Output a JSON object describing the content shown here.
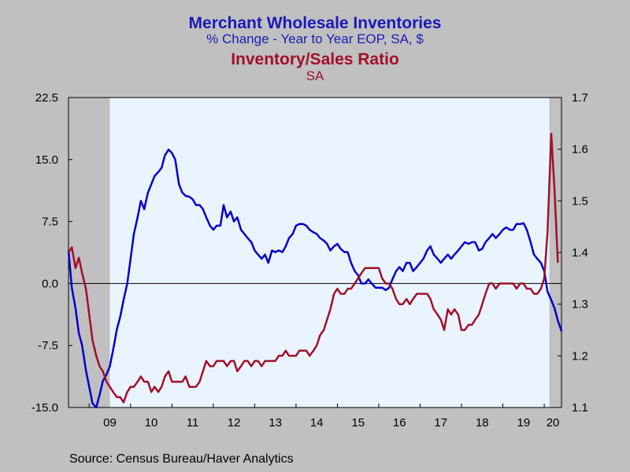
{
  "titles": {
    "line1": "Merchant Wholesale Inventories",
    "line2": "% Change - Year to Year    EOP, SA, $",
    "line3": "Inventory/Sales Ratio",
    "line4": "SA"
  },
  "source": "Source:  Census Bureau/Haver Analytics",
  "colors": {
    "series1": "#0000cc",
    "series2": "#a0102a",
    "plot_bg": "#eaf4ff",
    "recession": "#c0c0c0"
  },
  "chart_data": {
    "type": "line",
    "x_ticks": [
      "09",
      "10",
      "11",
      "12",
      "13",
      "14",
      "15",
      "16",
      "17",
      "18",
      "19",
      "20"
    ],
    "x_range": [
      2008.5,
      2020.417
    ],
    "recessions": [
      [
        2008.5,
        2009.5
      ],
      [
        2020.125,
        2020.417
      ]
    ],
    "grid": false,
    "zero_line": true,
    "left_axis": {
      "range": [
        -15,
        22.5
      ],
      "ticks": [
        22.5,
        15,
        7.5,
        0,
        -7.5,
        -15
      ],
      "tick_labels": [
        "22.5",
        "15.0",
        "7.5",
        "0.0",
        "-7.5",
        "-15.0"
      ]
    },
    "right_axis": {
      "range": [
        1.1,
        1.7
      ],
      "ticks": [
        1.7,
        1.6,
        1.5,
        1.4,
        1.3,
        1.2,
        1.1
      ],
      "tick_labels": [
        "1.7",
        "1.6",
        "1.5",
        "1.4",
        "1.3",
        "1.2",
        "1.1"
      ]
    },
    "series": [
      {
        "axis": "left",
        "color": "#0000cc",
        "points": [
          [
            2008.5,
            4.0
          ],
          [
            2008.58,
            -0.5
          ],
          [
            2008.67,
            -3.0
          ],
          [
            2008.75,
            -6.0
          ],
          [
            2008.83,
            -7.5
          ],
          [
            2008.92,
            -10.5
          ],
          [
            2009.0,
            -12.5
          ],
          [
            2009.08,
            -14.5
          ],
          [
            2009.17,
            -15.0
          ],
          [
            2009.25,
            -13.5
          ],
          [
            2009.33,
            -11.8
          ],
          [
            2009.42,
            -11.0
          ],
          [
            2009.5,
            -10.0
          ],
          [
            2009.58,
            -8.0
          ],
          [
            2009.67,
            -5.5
          ],
          [
            2009.75,
            -4.0
          ],
          [
            2009.83,
            -2.0
          ],
          [
            2009.92,
            0.0
          ],
          [
            2010.0,
            3.0
          ],
          [
            2010.08,
            6.0
          ],
          [
            2010.17,
            8.0
          ],
          [
            2010.25,
            10.0
          ],
          [
            2010.33,
            9.0
          ],
          [
            2010.42,
            11.0
          ],
          [
            2010.5,
            12.0
          ],
          [
            2010.58,
            13.0
          ],
          [
            2010.67,
            13.5
          ],
          [
            2010.75,
            14.0
          ],
          [
            2010.83,
            15.5
          ],
          [
            2010.92,
            16.2
          ],
          [
            2011.0,
            15.8
          ],
          [
            2011.08,
            15.0
          ],
          [
            2011.17,
            12.0
          ],
          [
            2011.25,
            11.0
          ],
          [
            2011.33,
            10.6
          ],
          [
            2011.42,
            10.5
          ],
          [
            2011.5,
            10.2
          ],
          [
            2011.58,
            9.5
          ],
          [
            2011.67,
            9.5
          ],
          [
            2011.75,
            9.0
          ],
          [
            2011.83,
            8.0
          ],
          [
            2011.92,
            7.0
          ],
          [
            2012.0,
            6.5
          ],
          [
            2012.08,
            7.0
          ],
          [
            2012.17,
            7.0
          ],
          [
            2012.25,
            9.5
          ],
          [
            2012.33,
            8.0
          ],
          [
            2012.42,
            8.7
          ],
          [
            2012.5,
            7.5
          ],
          [
            2012.58,
            8.0
          ],
          [
            2012.67,
            6.5
          ],
          [
            2012.75,
            6.0
          ],
          [
            2012.83,
            5.5
          ],
          [
            2012.92,
            5.0
          ],
          [
            2013.0,
            4.0
          ],
          [
            2013.08,
            3.5
          ],
          [
            2013.17,
            3.0
          ],
          [
            2013.25,
            3.5
          ],
          [
            2013.33,
            2.5
          ],
          [
            2013.42,
            4.0
          ],
          [
            2013.5,
            3.8
          ],
          [
            2013.58,
            4.0
          ],
          [
            2013.67,
            3.8
          ],
          [
            2013.75,
            4.5
          ],
          [
            2013.83,
            5.5
          ],
          [
            2013.92,
            6.0
          ],
          [
            2014.0,
            7.0
          ],
          [
            2014.08,
            7.2
          ],
          [
            2014.17,
            7.2
          ],
          [
            2014.25,
            7.0
          ],
          [
            2014.33,
            6.5
          ],
          [
            2014.42,
            6.2
          ],
          [
            2014.5,
            6.0
          ],
          [
            2014.58,
            5.5
          ],
          [
            2014.67,
            5.2
          ],
          [
            2014.75,
            4.8
          ],
          [
            2014.83,
            4.0
          ],
          [
            2014.92,
            4.5
          ],
          [
            2015.0,
            4.8
          ],
          [
            2015.08,
            4.2
          ],
          [
            2015.17,
            3.8
          ],
          [
            2015.25,
            3.8
          ],
          [
            2015.33,
            2.5
          ],
          [
            2015.42,
            1.5
          ],
          [
            2015.5,
            1.0
          ],
          [
            2015.58,
            0.0
          ],
          [
            2015.67,
            0.0
          ],
          [
            2015.75,
            0.5
          ],
          [
            2015.83,
            0.0
          ],
          [
            2015.92,
            -0.5
          ],
          [
            2016.0,
            -0.5
          ],
          [
            2016.08,
            -0.5
          ],
          [
            2016.17,
            -0.8
          ],
          [
            2016.25,
            -0.5
          ],
          [
            2016.33,
            0.5
          ],
          [
            2016.42,
            1.5
          ],
          [
            2016.5,
            2.0
          ],
          [
            2016.58,
            1.5
          ],
          [
            2016.67,
            2.5
          ],
          [
            2016.75,
            2.5
          ],
          [
            2016.83,
            1.5
          ],
          [
            2016.92,
            2.0
          ],
          [
            2017.0,
            2.5
          ],
          [
            2017.08,
            3.0
          ],
          [
            2017.17,
            4.0
          ],
          [
            2017.25,
            4.5
          ],
          [
            2017.33,
            3.5
          ],
          [
            2017.42,
            3.0
          ],
          [
            2017.5,
            2.5
          ],
          [
            2017.58,
            3.0
          ],
          [
            2017.67,
            3.5
          ],
          [
            2017.75,
            3.0
          ],
          [
            2017.83,
            3.5
          ],
          [
            2017.92,
            4.0
          ],
          [
            2018.0,
            4.5
          ],
          [
            2018.08,
            5.0
          ],
          [
            2018.17,
            4.8
          ],
          [
            2018.25,
            5.0
          ],
          [
            2018.33,
            5.0
          ],
          [
            2018.42,
            4.0
          ],
          [
            2018.5,
            4.2
          ],
          [
            2018.58,
            5.0
          ],
          [
            2018.67,
            5.5
          ],
          [
            2018.75,
            6.0
          ],
          [
            2018.83,
            5.5
          ],
          [
            2018.92,
            6.0
          ],
          [
            2019.0,
            6.5
          ],
          [
            2019.08,
            6.8
          ],
          [
            2019.17,
            6.5
          ],
          [
            2019.25,
            6.5
          ],
          [
            2019.33,
            7.2
          ],
          [
            2019.42,
            7.2
          ],
          [
            2019.5,
            7.3
          ],
          [
            2019.58,
            6.5
          ],
          [
            2019.67,
            5.0
          ],
          [
            2019.75,
            3.5
          ],
          [
            2019.83,
            3.0
          ],
          [
            2019.92,
            2.5
          ],
          [
            2020.0,
            1.5
          ],
          [
            2020.08,
            -1.0
          ],
          [
            2020.17,
            -2.0
          ],
          [
            2020.25,
            -3.0
          ],
          [
            2020.33,
            -4.5
          ],
          [
            2020.42,
            -5.8
          ]
        ]
      },
      {
        "axis": "right",
        "color": "#a0102a",
        "points": [
          [
            2008.5,
            1.4
          ],
          [
            2008.58,
            1.41
          ],
          [
            2008.67,
            1.37
          ],
          [
            2008.75,
            1.39
          ],
          [
            2008.83,
            1.36
          ],
          [
            2008.92,
            1.33
          ],
          [
            2009.0,
            1.28
          ],
          [
            2009.08,
            1.23
          ],
          [
            2009.17,
            1.2
          ],
          [
            2009.25,
            1.18
          ],
          [
            2009.33,
            1.17
          ],
          [
            2009.42,
            1.15
          ],
          [
            2009.5,
            1.14
          ],
          [
            2009.58,
            1.13
          ],
          [
            2009.67,
            1.12
          ],
          [
            2009.75,
            1.12
          ],
          [
            2009.83,
            1.11
          ],
          [
            2009.92,
            1.13
          ],
          [
            2010.0,
            1.14
          ],
          [
            2010.08,
            1.14
          ],
          [
            2010.17,
            1.15
          ],
          [
            2010.25,
            1.16
          ],
          [
            2010.33,
            1.15
          ],
          [
            2010.42,
            1.15
          ],
          [
            2010.5,
            1.13
          ],
          [
            2010.58,
            1.14
          ],
          [
            2010.67,
            1.13
          ],
          [
            2010.75,
            1.14
          ],
          [
            2010.83,
            1.16
          ],
          [
            2010.92,
            1.17
          ],
          [
            2011.0,
            1.15
          ],
          [
            2011.08,
            1.15
          ],
          [
            2011.17,
            1.15
          ],
          [
            2011.25,
            1.15
          ],
          [
            2011.33,
            1.16
          ],
          [
            2011.42,
            1.14
          ],
          [
            2011.5,
            1.14
          ],
          [
            2011.58,
            1.14
          ],
          [
            2011.67,
            1.15
          ],
          [
            2011.75,
            1.17
          ],
          [
            2011.83,
            1.19
          ],
          [
            2011.92,
            1.18
          ],
          [
            2012.0,
            1.18
          ],
          [
            2012.08,
            1.19
          ],
          [
            2012.17,
            1.19
          ],
          [
            2012.25,
            1.19
          ],
          [
            2012.33,
            1.18
          ],
          [
            2012.42,
            1.19
          ],
          [
            2012.5,
            1.19
          ],
          [
            2012.58,
            1.17
          ],
          [
            2012.67,
            1.18
          ],
          [
            2012.75,
            1.19
          ],
          [
            2012.83,
            1.19
          ],
          [
            2012.92,
            1.18
          ],
          [
            2013.0,
            1.19
          ],
          [
            2013.08,
            1.19
          ],
          [
            2013.17,
            1.18
          ],
          [
            2013.25,
            1.19
          ],
          [
            2013.33,
            1.19
          ],
          [
            2013.42,
            1.19
          ],
          [
            2013.5,
            1.19
          ],
          [
            2013.58,
            1.2
          ],
          [
            2013.67,
            1.2
          ],
          [
            2013.75,
            1.21
          ],
          [
            2013.83,
            1.2
          ],
          [
            2013.92,
            1.2
          ],
          [
            2014.0,
            1.2
          ],
          [
            2014.08,
            1.21
          ],
          [
            2014.17,
            1.21
          ],
          [
            2014.25,
            1.21
          ],
          [
            2014.33,
            1.2
          ],
          [
            2014.42,
            1.21
          ],
          [
            2014.5,
            1.22
          ],
          [
            2014.58,
            1.24
          ],
          [
            2014.67,
            1.25
          ],
          [
            2014.75,
            1.27
          ],
          [
            2014.83,
            1.29
          ],
          [
            2014.92,
            1.32
          ],
          [
            2015.0,
            1.33
          ],
          [
            2015.08,
            1.32
          ],
          [
            2015.17,
            1.32
          ],
          [
            2015.25,
            1.33
          ],
          [
            2015.33,
            1.33
          ],
          [
            2015.42,
            1.34
          ],
          [
            2015.5,
            1.35
          ],
          [
            2015.58,
            1.36
          ],
          [
            2015.67,
            1.37
          ],
          [
            2015.75,
            1.37
          ],
          [
            2015.83,
            1.37
          ],
          [
            2015.92,
            1.37
          ],
          [
            2016.0,
            1.37
          ],
          [
            2016.08,
            1.35
          ],
          [
            2016.17,
            1.34
          ],
          [
            2016.25,
            1.34
          ],
          [
            2016.33,
            1.33
          ],
          [
            2016.42,
            1.31
          ],
          [
            2016.5,
            1.3
          ],
          [
            2016.58,
            1.3
          ],
          [
            2016.67,
            1.31
          ],
          [
            2016.75,
            1.3
          ],
          [
            2016.83,
            1.31
          ],
          [
            2016.92,
            1.32
          ],
          [
            2017.0,
            1.32
          ],
          [
            2017.08,
            1.32
          ],
          [
            2017.17,
            1.32
          ],
          [
            2017.25,
            1.31
          ],
          [
            2017.33,
            1.29
          ],
          [
            2017.42,
            1.28
          ],
          [
            2017.5,
            1.27
          ],
          [
            2017.58,
            1.25
          ],
          [
            2017.67,
            1.29
          ],
          [
            2017.75,
            1.28
          ],
          [
            2017.83,
            1.29
          ],
          [
            2017.92,
            1.28
          ],
          [
            2018.0,
            1.25
          ],
          [
            2018.08,
            1.25
          ],
          [
            2018.17,
            1.26
          ],
          [
            2018.25,
            1.26
          ],
          [
            2018.33,
            1.27
          ],
          [
            2018.42,
            1.28
          ],
          [
            2018.5,
            1.3
          ],
          [
            2018.58,
            1.32
          ],
          [
            2018.67,
            1.34
          ],
          [
            2018.75,
            1.34
          ],
          [
            2018.83,
            1.33
          ],
          [
            2018.92,
            1.34
          ],
          [
            2019.0,
            1.34
          ],
          [
            2019.08,
            1.34
          ],
          [
            2019.17,
            1.34
          ],
          [
            2019.25,
            1.34
          ],
          [
            2019.33,
            1.33
          ],
          [
            2019.42,
            1.34
          ],
          [
            2019.5,
            1.34
          ],
          [
            2019.58,
            1.33
          ],
          [
            2019.67,
            1.33
          ],
          [
            2019.75,
            1.32
          ],
          [
            2019.83,
            1.32
          ],
          [
            2019.92,
            1.33
          ],
          [
            2020.0,
            1.35
          ],
          [
            2020.08,
            1.44
          ],
          [
            2020.17,
            1.63
          ],
          [
            2020.25,
            1.52
          ],
          [
            2020.33,
            1.38
          ]
        ]
      }
    ]
  }
}
